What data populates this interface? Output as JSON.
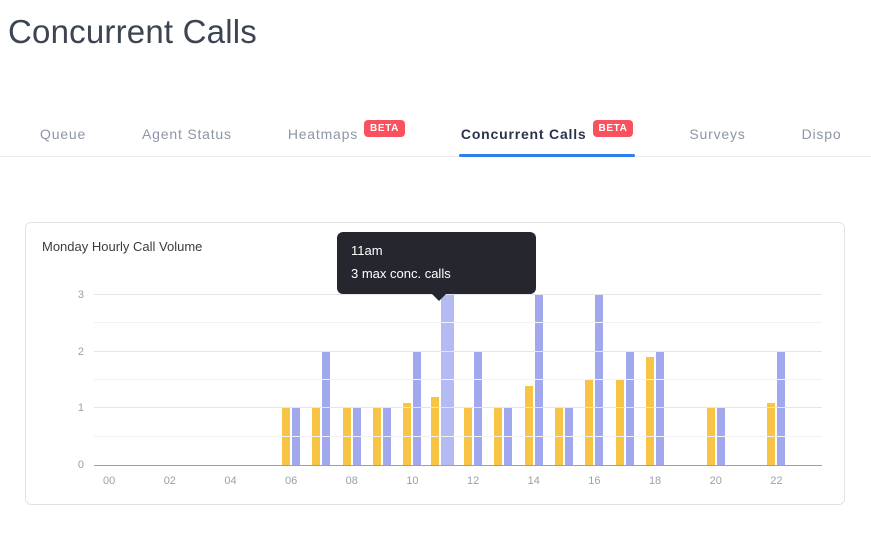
{
  "page": {
    "title": "Concurrent Calls"
  },
  "tabs": {
    "beta_label": "BETA",
    "items": [
      {
        "label": "Queue",
        "beta": false,
        "active": false
      },
      {
        "label": "Agent Status",
        "beta": false,
        "active": false
      },
      {
        "label": "Heatmaps",
        "beta": true,
        "active": false
      },
      {
        "label": "Concurrent Calls",
        "beta": true,
        "active": true
      },
      {
        "label": "Surveys",
        "beta": false,
        "active": false
      },
      {
        "label": "Dispo",
        "beta": false,
        "active": false
      }
    ]
  },
  "card": {
    "title": "Monday Hourly Call Volume"
  },
  "tooltip": {
    "time": "11am",
    "text": "3 max conc. calls"
  },
  "colors": {
    "accent_blue": "#2d7ff0",
    "beta_red": "#f9525e",
    "bar_yellow": "#f8c445",
    "bar_purple": "#a1a8ed",
    "bar_purple_highlight": "#b4baf2",
    "tooltip_bg": "#26262e"
  },
  "chart_data": {
    "type": "bar",
    "title": "Monday Hourly Call Volume",
    "x": [
      "00",
      "01",
      "02",
      "03",
      "04",
      "05",
      "06",
      "07",
      "08",
      "09",
      "10",
      "11",
      "12",
      "13",
      "14",
      "15",
      "16",
      "17",
      "18",
      "19",
      "20",
      "21",
      "22",
      "23"
    ],
    "x_tick_every": 2,
    "series": [
      {
        "name": "yellow",
        "color": "#f8c445",
        "values": [
          0,
          0,
          0,
          0,
          0,
          0,
          1,
          1,
          1,
          1,
          1.1,
          1.2,
          1,
          1,
          1.4,
          1,
          1.5,
          1.5,
          1.9,
          0,
          1,
          0,
          1.1,
          0
        ]
      },
      {
        "name": "max conc. calls",
        "color": "#a1a8ed",
        "values": [
          0,
          0,
          0,
          0,
          0,
          0,
          1,
          2,
          1,
          1,
          2,
          3,
          2,
          1,
          3,
          1,
          3,
          2,
          2,
          0,
          1,
          0,
          2,
          0
        ]
      }
    ],
    "ylim": [
      0,
      3
    ],
    "yticks": [
      0,
      1,
      2,
      3
    ],
    "minor_grid_step": 0.5,
    "grid": true,
    "legend": "none",
    "highlight": {
      "hour": 11,
      "series": 1
    }
  }
}
